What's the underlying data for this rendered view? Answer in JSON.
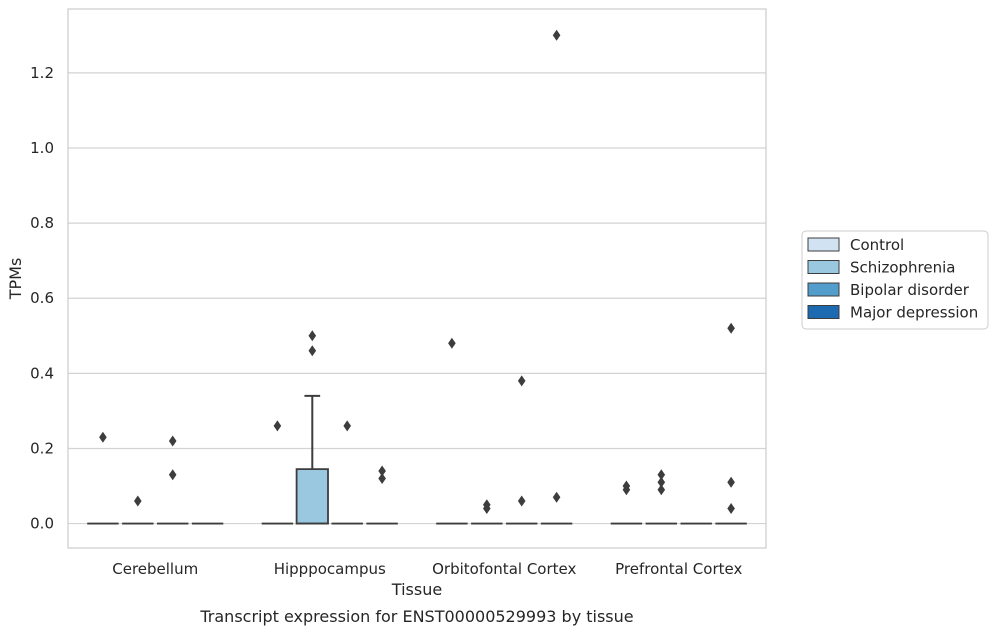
{
  "chart_data": {
    "type": "box",
    "xlabel": "Tissue",
    "ylabel": "TPMs",
    "caption": "Transcript expression for ENST00000529993 by tissue",
    "ylim": [
      -0.065,
      1.37
    ],
    "yticks": [
      0.0,
      0.2,
      0.4,
      0.6,
      0.8,
      1.0,
      1.2
    ],
    "ytick_labels": [
      "0.0",
      "0.2",
      "0.4",
      "0.6",
      "0.8",
      "1.0",
      "1.2"
    ],
    "grid": "horizontal",
    "legend_position": "right",
    "categories": [
      "Cerebellum",
      "Hipppocampus",
      "Orbitofontal Cortex",
      "Prefrontal Cortex"
    ],
    "series": [
      {
        "name": "Control",
        "color": "#d1e2f2",
        "boxes": [
          {
            "q1": 0,
            "median": 0,
            "q3": 0,
            "whisker_low": 0,
            "whisker_high": 0,
            "outliers": [
              0.23
            ]
          },
          {
            "q1": 0,
            "median": 0,
            "q3": 0,
            "whisker_low": 0,
            "whisker_high": 0,
            "outliers": [
              0.26
            ]
          },
          {
            "q1": 0,
            "median": 0,
            "q3": 0,
            "whisker_low": 0,
            "whisker_high": 0,
            "outliers": [
              0.48
            ]
          },
          {
            "q1": 0,
            "median": 0,
            "q3": 0,
            "whisker_low": 0,
            "whisker_high": 0,
            "outliers": [
              0.1,
              0.09
            ]
          }
        ]
      },
      {
        "name": "Schizophrenia",
        "color": "#9ac8e0",
        "boxes": [
          {
            "q1": 0,
            "median": 0,
            "q3": 0,
            "whisker_low": 0,
            "whisker_high": 0,
            "outliers": [
              0.06
            ]
          },
          {
            "q1": 0,
            "median": 0,
            "q3": 0.145,
            "whisker_low": 0,
            "whisker_high": 0.34,
            "outliers": [
              0.5,
              0.46
            ]
          },
          {
            "q1": 0,
            "median": 0,
            "q3": 0,
            "whisker_low": 0,
            "whisker_high": 0,
            "outliers": [
              0.05,
              0.04
            ]
          },
          {
            "q1": 0,
            "median": 0,
            "q3": 0,
            "whisker_low": 0,
            "whisker_high": 0,
            "outliers": [
              0.13,
              0.11,
              0.09
            ]
          }
        ]
      },
      {
        "name": "Bipolar disorder",
        "color": "#529dcc",
        "boxes": [
          {
            "q1": 0,
            "median": 0,
            "q3": 0,
            "whisker_low": 0,
            "whisker_high": 0,
            "outliers": [
              0.22,
              0.13
            ]
          },
          {
            "q1": 0,
            "median": 0,
            "q3": 0,
            "whisker_low": 0,
            "whisker_high": 0,
            "outliers": [
              0.26
            ]
          },
          {
            "q1": 0,
            "median": 0,
            "q3": 0,
            "whisker_low": 0,
            "whisker_high": 0,
            "outliers": [
              0.38,
              0.06
            ]
          },
          {
            "q1": 0,
            "median": 0,
            "q3": 0,
            "whisker_low": 0,
            "whisker_high": 0,
            "outliers": []
          }
        ]
      },
      {
        "name": "Major depression",
        "color": "#1c6aaf",
        "boxes": [
          {
            "q1": 0,
            "median": 0,
            "q3": 0,
            "whisker_low": 0,
            "whisker_high": 0,
            "outliers": []
          },
          {
            "q1": 0,
            "median": 0,
            "q3": 0,
            "whisker_low": 0,
            "whisker_high": 0,
            "outliers": [
              0.14,
              0.12
            ]
          },
          {
            "q1": 0,
            "median": 0,
            "q3": 0,
            "whisker_low": 0,
            "whisker_high": 0,
            "outliers": [
              1.3,
              0.07
            ]
          },
          {
            "q1": 0,
            "median": 0,
            "q3": 0,
            "whisker_low": 0,
            "whisker_high": 0,
            "outliers": [
              0.52,
              0.11,
              0.04
            ]
          }
        ]
      }
    ]
  }
}
